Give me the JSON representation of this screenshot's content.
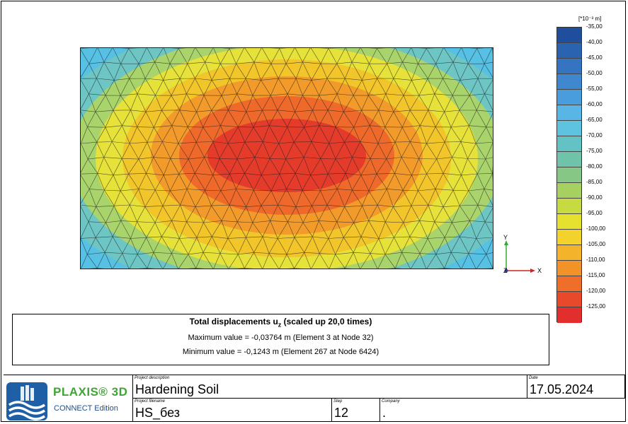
{
  "plot": {
    "colors": {
      "outer": "#2f79c2",
      "bands": [
        "#56c1e4",
        "#6dc6c4",
        "#a9d36b",
        "#e6e23a",
        "#f2c52a",
        "#f39b2a",
        "#ef6a2a",
        "#e53b2b"
      ]
    },
    "axes": {
      "y_label": "Y",
      "z_label": "Z",
      "x_label": "X",
      "y_color": "#3aa53a",
      "x_color": "#d6201f",
      "z_color": "#2f3f9c"
    }
  },
  "legend": {
    "unit": "[*10⁻³ m]",
    "ticks": [
      "-35,00",
      "-40,00",
      "-45,00",
      "-50,00",
      "-55,00",
      "-60,00",
      "-65,00",
      "-70,00",
      "-75,00",
      "-80,00",
      "-85,00",
      "-90,00",
      "-95,00",
      "-100,00",
      "-105,00",
      "-110,00",
      "-115,00",
      "-120,00",
      "-125,00"
    ],
    "colors": [
      "#1f4e9c",
      "#2a64b0",
      "#3474c0",
      "#3f88cf",
      "#4a9ddc",
      "#58b5e6",
      "#5ec3de",
      "#62c2c4",
      "#6fc3a8",
      "#86c785",
      "#a6d060",
      "#c8da42",
      "#e6e12f",
      "#f3d22c",
      "#f3b42b",
      "#f2932a",
      "#ee6e2a",
      "#e8492b",
      "#e22e2c"
    ]
  },
  "info": {
    "title_main": "Total displacements u",
    "title_sub": "z",
    "title_rest": " (scaled up 20,0 times)",
    "max_line": "Maximum value = -0,03764 m (Element 3 at Node 32)",
    "min_line": "Minimum value = -0,1243 m (Element 267 at Node 6424)"
  },
  "footer": {
    "brand": "PLAXIS® 3D",
    "edition": "CONNECT Edition",
    "project_description_label": "Project description",
    "project_description": "Hardening Soil",
    "date_label": "Date",
    "date": "17.05.2024",
    "project_filename_label": "Project filename",
    "project_filename": "HS_без",
    "step_label": "Step",
    "step": "12",
    "company_label": "Company",
    "company": "."
  }
}
